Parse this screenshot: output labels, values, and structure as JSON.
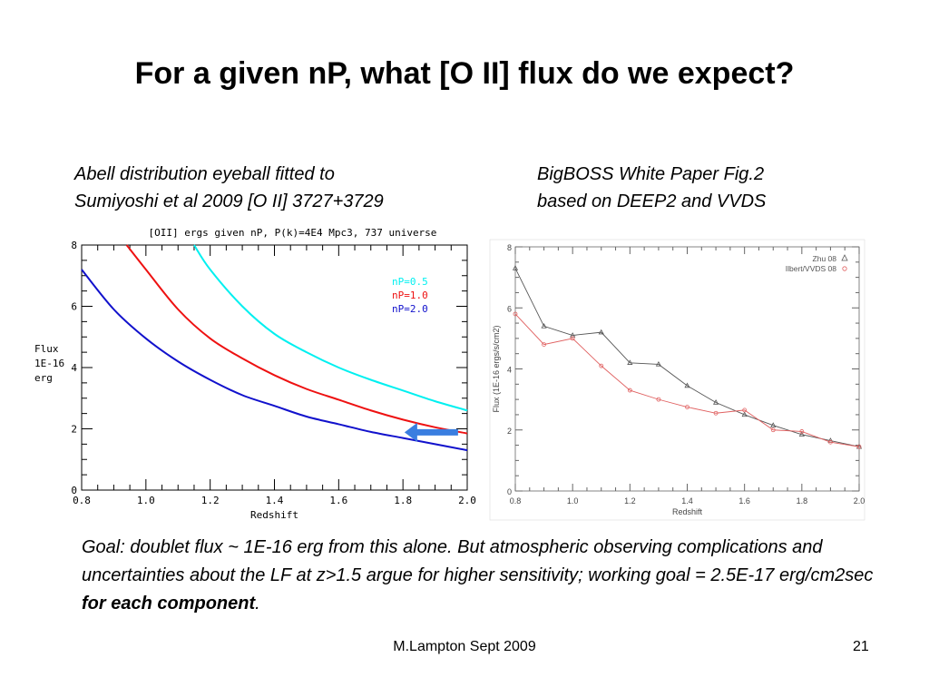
{
  "slide": {
    "title": "For a given nP, what [O II] flux do we expect?",
    "caption_left_1": "Abell distribution eyeball fitted to",
    "caption_left_2": "Sumiyoshi et al 2009 [O II] 3727+3729",
    "caption_right_1": "BigBOSS White Paper Fig.2",
    "caption_right_2": "based on DEEP2 and VVDS",
    "goal_text": "Goal: doublet flux ~ 1E-16 erg from this alone.  But atmospheric observing complications and uncertainties about the LF at z>1.5 argue for higher sensitivity; working goal = 2.5E-17 erg/cm2sec ",
    "goal_bold": "for each component",
    "goal_end": ".",
    "footer_author": "M.Lampton Sept 2009",
    "page_number": "21"
  },
  "chart_data": [
    {
      "type": "line",
      "title": "[OII] ergs given nP, P(k)=4E4 Mpc3, 737 universe",
      "xlabel": "Redshift",
      "ylabel": [
        "Flux",
        "1E-16",
        "erg"
      ],
      "xlim": [
        0.8,
        2.0
      ],
      "ylim": [
        0,
        8
      ],
      "x_ticks": [
        "0.8",
        "1.0",
        "1.2",
        "1.4",
        "1.6",
        "1.8",
        "2.0"
      ],
      "y_ticks": [
        "0",
        "2",
        "4",
        "6",
        "8"
      ],
      "legend_position": "top-right",
      "annotation": "left-pointing blue arrow near z=1.85, flux=1.9",
      "series": [
        {
          "name": "nP=0.5",
          "color": "#00f0f0",
          "x": [
            1.15,
            1.2,
            1.3,
            1.4,
            1.5,
            1.6,
            1.7,
            1.8,
            1.9,
            2.0
          ],
          "y": [
            8.0,
            7.2,
            6.0,
            5.1,
            4.5,
            4.0,
            3.6,
            3.25,
            2.9,
            2.6
          ]
        },
        {
          "name": "nP=1.0",
          "color": "#ee1111",
          "x": [
            0.94,
            1.0,
            1.1,
            1.2,
            1.3,
            1.4,
            1.5,
            1.6,
            1.7,
            1.8,
            1.9,
            2.0
          ],
          "y": [
            8.0,
            7.2,
            5.9,
            4.95,
            4.3,
            3.75,
            3.3,
            2.95,
            2.6,
            2.3,
            2.05,
            1.85
          ]
        },
        {
          "name": "nP=2.0",
          "color": "#1111cc",
          "x": [
            0.8,
            0.9,
            1.0,
            1.1,
            1.2,
            1.3,
            1.4,
            1.5,
            1.6,
            1.7,
            1.8,
            1.9,
            2.0
          ],
          "y": [
            7.2,
            5.9,
            4.95,
            4.2,
            3.6,
            3.1,
            2.75,
            2.4,
            2.15,
            1.9,
            1.7,
            1.5,
            1.3
          ]
        }
      ]
    },
    {
      "type": "line",
      "title": "",
      "xlabel": "Redshift",
      "ylabel": "Flux (1E-16 ergs/s/cm2)",
      "xlim": [
        0.8,
        2.0
      ],
      "ylim": [
        0,
        8
      ],
      "x_ticks": [
        "0.8",
        "1.0",
        "1.2",
        "1.4",
        "1.6",
        "1.8",
        "2.0"
      ],
      "y_ticks": [
        "0",
        "2",
        "4",
        "6",
        "8"
      ],
      "legend_position": "top-right",
      "series": [
        {
          "name": "Zhu 08",
          "color": "#555555",
          "marker": "triangle",
          "x": [
            0.8,
            0.9,
            1.0,
            1.1,
            1.2,
            1.3,
            1.4,
            1.5,
            1.6,
            1.7,
            1.8,
            1.9,
            2.0
          ],
          "y": [
            7.3,
            5.4,
            5.1,
            5.2,
            4.2,
            4.15,
            3.45,
            2.9,
            2.5,
            2.15,
            1.85,
            1.65,
            1.45
          ]
        },
        {
          "name": "Ilbert/VVDS 08",
          "color": "#e06060",
          "marker": "circle",
          "x": [
            0.8,
            0.9,
            1.0,
            1.1,
            1.2,
            1.3,
            1.4,
            1.5,
            1.6,
            1.7,
            1.8,
            1.9,
            2.0
          ],
          "y": [
            5.8,
            4.8,
            5.0,
            4.1,
            3.3,
            3.0,
            2.75,
            2.55,
            2.65,
            2.0,
            1.95,
            1.6,
            1.45
          ]
        }
      ]
    }
  ]
}
